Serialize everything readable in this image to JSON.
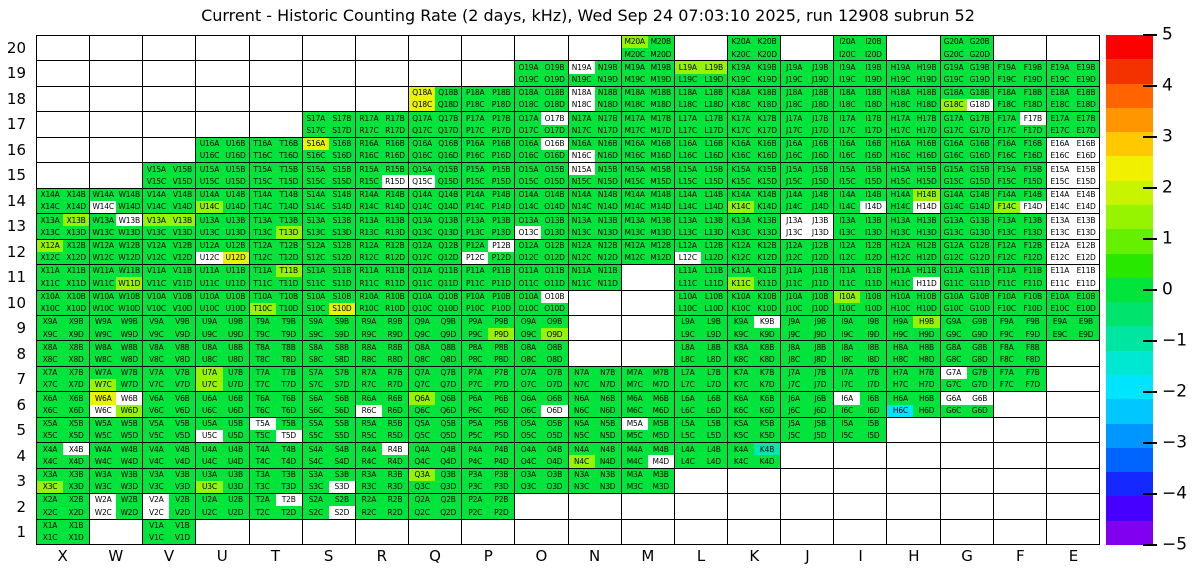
{
  "title": "Current - Historic Counting Rate (2 days, kHz), Wed Sep 24 07:03:10 2025, run 12908 subrun 52",
  "chart_data": {
    "type": "heatmap",
    "title": "Current - Historic Counting Rate (2 days, kHz), Wed Sep 24 07:03:10 2025, run 12908 subrun 52",
    "x_categories": [
      "X",
      "W",
      "V",
      "U",
      "T",
      "S",
      "R",
      "Q",
      "P",
      "O",
      "N",
      "M",
      "L",
      "K",
      "J",
      "I",
      "H",
      "G",
      "F",
      "E"
    ],
    "y_categories": [
      "20",
      "19",
      "18",
      "17",
      "16",
      "15",
      "14",
      "13",
      "12",
      "11",
      "10",
      "9",
      "8",
      "7",
      "6",
      "5",
      "4",
      "3",
      "2",
      "1"
    ],
    "sub_cells": [
      "A",
      "B",
      "C",
      "D"
    ],
    "legend_position": "right",
    "value_scale": {
      "min": -5,
      "max": 5,
      "ticks": [
        "5",
        "4",
        "3",
        "2",
        "1",
        "0",
        "−1",
        "−2",
        "−3",
        "−4",
        "−5"
      ]
    },
    "palette": [
      "#ff0000",
      "#f43200",
      "#ff6400",
      "#ff9600",
      "#ffc800",
      "#f0f000",
      "#c8f400",
      "#96f400",
      "#64f000",
      "#28e800",
      "#00e43c",
      "#00e46e",
      "#00e6a0",
      "#00e8d2",
      "#00e5ff",
      "#00c8ff",
      "#0096ff",
      "#0064ff",
      "#1428ff",
      "#4600ff",
      "#8200f0"
    ],
    "value_colors": {
      "g": "#00e43c",
      "l": "#96f400",
      "y": "#e8f400",
      "c": "#00e5ff",
      "t": "#00e6b4",
      "w": "#ffffff"
    },
    "modules": {
      "20": {
        "M": {
          "A": "l"
        },
        "K": {},
        "I": {},
        "G": {}
      },
      "19": {
        "O": {},
        "N": {
          "A": "w"
        },
        "M": {},
        "L": {
          "A": "l",
          "B": "l"
        },
        "K": {},
        "J": {},
        "I": {},
        "H": {},
        "G": {},
        "F": {},
        "E": {}
      },
      "18": {
        "Q": {
          "A": "y",
          "C": "y"
        },
        "P": {},
        "O": {},
        "N": {
          "A": "w",
          "C": "w"
        },
        "M": {},
        "L": {},
        "K": {},
        "J": {},
        "I": {},
        "H": {},
        "G": {
          "C": "l",
          "D": "w"
        },
        "F": {},
        "E": {}
      },
      "17": {
        "S": {},
        "R": {},
        "Q": {},
        "P": {},
        "O": {
          "B": "w"
        },
        "N": {},
        "M": {},
        "L": {},
        "K": {},
        "J": {},
        "I": {},
        "H": {},
        "G": {},
        "F": {
          "B": "w"
        },
        "E": {}
      },
      "16": {
        "U": {},
        "T": {},
        "S": {
          "A": "y"
        },
        "R": {},
        "Q": {},
        "P": {},
        "O": {
          "B": "w"
        },
        "N": {
          "C": "w"
        },
        "M": {},
        "L": {},
        "K": {},
        "J": {},
        "I": {},
        "H": {},
        "G": {},
        "F": {},
        "E": {
          "A": "w",
          "B": "w",
          "C": "w",
          "D": "w"
        }
      },
      "15": {
        "V": {},
        "U": {},
        "T": {},
        "S": {},
        "R": {
          "D": "w"
        },
        "Q": {
          "C": "w"
        },
        "P": {},
        "O": {},
        "N": {
          "A": "w"
        },
        "M": {},
        "L": {},
        "K": {},
        "J": {},
        "I": {},
        "H": {},
        "G": {},
        "F": {},
        "E": {
          "A": "w",
          "B": "w",
          "C": "w",
          "D": "w"
        }
      },
      "14": {
        "X": {},
        "W": {
          "C": "w"
        },
        "V": {},
        "U": {
          "C": "l"
        },
        "T": {},
        "S": {},
        "R": {},
        "Q": {},
        "P": {},
        "O": {},
        "N": {},
        "M": {},
        "L": {},
        "K": {
          "C": "l"
        },
        "J": {},
        "I": {
          "D": "w"
        },
        "H": {
          "B": "l",
          "D": "w"
        },
        "G": {},
        "F": {
          "C": "l",
          "D": "w"
        },
        "E": {
          "A": "w",
          "B": "w",
          "C": "w",
          "D": "w"
        }
      },
      "13": {
        "X": {
          "B": "l"
        },
        "W": {
          "B": "w"
        },
        "V": {
          "A": "l",
          "B": "l"
        },
        "U": {},
        "T": {
          "D": "l"
        },
        "S": {},
        "R": {},
        "Q": {},
        "P": {},
        "O": {
          "C": "w"
        },
        "N": {},
        "M": {},
        "L": {},
        "K": {},
        "J": {
          "A": "w",
          "B": "w",
          "C": "w",
          "D": "w"
        },
        "I": {},
        "H": {},
        "G": {},
        "F": {},
        "E": {
          "A": "w",
          "B": "w",
          "C": "w",
          "D": "w"
        }
      },
      "12": {
        "X": {
          "A": "l"
        },
        "W": {},
        "V": {},
        "U": {
          "C": "w",
          "D": "y"
        },
        "T": {},
        "S": {},
        "R": {},
        "Q": {},
        "P": {
          "B": "w",
          "C": "w"
        },
        "O": {},
        "N": {},
        "M": {},
        "L": {
          "C": "w"
        },
        "K": {},
        "J": {},
        "I": {},
        "H": {},
        "G": {},
        "F": {},
        "E": {
          "A": "w",
          "B": "w",
          "C": "w",
          "D": "w"
        }
      },
      "11": {
        "X": {},
        "W": {
          "D": "l"
        },
        "V": {},
        "U": {},
        "T": {
          "B": "l"
        },
        "S": {},
        "R": {},
        "Q": {},
        "P": {},
        "O": {},
        "N": {},
        "L": {},
        "K": {
          "C": "l"
        },
        "J": {},
        "I": {},
        "H": {
          "D": "w"
        },
        "G": {},
        "F": {},
        "E": {
          "A": "w",
          "B": "w",
          "C": "w",
          "D": "w"
        }
      },
      "10": {
        "X": {},
        "W": {},
        "V": {},
        "U": {},
        "T": {
          "C": "l"
        },
        "S": {
          "D": "y"
        },
        "R": {},
        "Q": {},
        "P": {},
        "O": {
          "B": "w"
        },
        "L": {},
        "K": {},
        "J": {},
        "I": {
          "A": "l"
        },
        "H": {},
        "G": {},
        "F": {},
        "E": {}
      },
      "9": {
        "X": {},
        "W": {},
        "V": {},
        "U": {},
        "T": {},
        "S": {},
        "R": {},
        "Q": {},
        "P": {
          "D": "l"
        },
        "O": {
          "D": "l"
        },
        "L": {},
        "K": {
          "B": "w"
        },
        "J": {},
        "I": {},
        "H": {
          "B": "l"
        },
        "G": {},
        "F": {},
        "E": {}
      },
      "8": {
        "X": {},
        "W": {},
        "V": {},
        "U": {},
        "T": {},
        "S": {},
        "R": {},
        "Q": {},
        "P": {},
        "O": {},
        "L": {},
        "K": {},
        "J": {},
        "I": {},
        "H": {},
        "G": {},
        "F": {}
      },
      "7": {
        "X": {},
        "W": {
          "C": "l"
        },
        "V": {},
        "U": {
          "A": "l",
          "C": "l"
        },
        "T": {},
        "S": {},
        "R": {},
        "Q": {},
        "P": {},
        "O": {},
        "N": {},
        "M": {},
        "L": {},
        "K": {},
        "J": {},
        "I": {},
        "H": {},
        "G": {
          "A": "w"
        },
        "F": {}
      },
      "6": {
        "X": {},
        "W": {
          "A": "y",
          "B": "w",
          "C": "w",
          "D": "l"
        },
        "V": {},
        "U": {},
        "T": {},
        "S": {},
        "R": {
          "C": "w"
        },
        "Q": {
          "A": "l"
        },
        "P": {},
        "O": {
          "D": "w"
        },
        "N": {},
        "M": {},
        "L": {},
        "K": {},
        "J": {},
        "I": {
          "A": "w"
        },
        "H": {
          "C": "c"
        },
        "G": {
          "A": "w",
          "B": "w"
        }
      },
      "5": {
        "X": {},
        "W": {},
        "V": {},
        "U": {
          "C": "w"
        },
        "T": {
          "A": "w",
          "D": "w"
        },
        "S": {},
        "R": {},
        "Q": {},
        "P": {},
        "O": {},
        "N": {},
        "M": {
          "A": "w"
        },
        "L": {},
        "K": {},
        "J": {},
        "I": {}
      },
      "4": {
        "X": {
          "B": "w"
        },
        "W": {},
        "V": {},
        "U": {},
        "T": {},
        "S": {},
        "R": {
          "B": "w"
        },
        "Q": {},
        "P": {},
        "O": {},
        "N": {
          "C": "l"
        },
        "M": {
          "D": "w"
        },
        "L": {},
        "K": {
          "B": "t"
        }
      },
      "3": {
        "X": {
          "C": "l"
        },
        "W": {},
        "V": {},
        "U": {
          "C": "l"
        },
        "T": {},
        "S": {
          "D": "w"
        },
        "R": {},
        "Q": {
          "A": "l"
        },
        "P": {},
        "O": {},
        "N": {},
        "M": {}
      },
      "2": {
        "X": {},
        "W": {
          "A": "w",
          "C": "w"
        },
        "V": {
          "A": "w",
          "C": "w"
        },
        "U": {},
        "T": {
          "B": "w"
        },
        "S": {
          "D": "w"
        },
        "R": {},
        "Q": {},
        "P": {}
      },
      "1": {
        "X": {},
        "V": {}
      }
    }
  }
}
